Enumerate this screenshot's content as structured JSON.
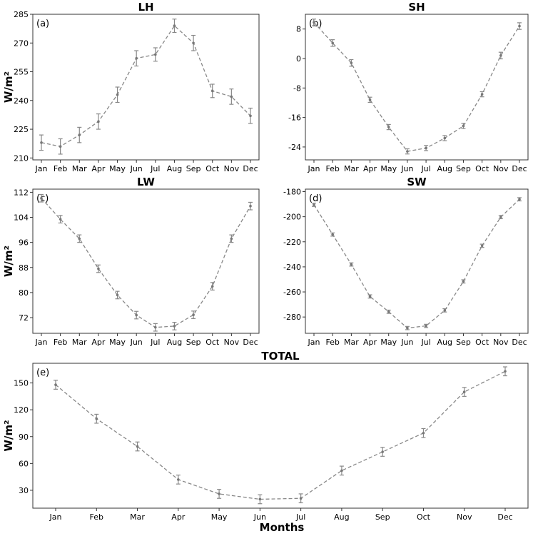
{
  "figure": {
    "xlabel": "Months"
  },
  "chart_data": [
    {
      "type": "line",
      "panel_label": "(a)",
      "title": "LH",
      "ylabel": "W/m²",
      "categories": [
        "Jan",
        "Feb",
        "Mar",
        "Apr",
        "May",
        "Jun",
        "Jul",
        "Aug",
        "Sep",
        "Oct",
        "Nov",
        "Dec"
      ],
      "values": [
        218,
        216,
        222,
        229,
        243,
        262,
        264,
        279,
        270,
        245,
        242,
        232
      ],
      "errors": [
        4,
        4,
        4,
        4,
        4,
        4,
        3.5,
        3.5,
        4,
        3.5,
        4,
        4
      ],
      "ylim": [
        209,
        285
      ],
      "yticks": [
        210,
        225,
        240,
        255,
        270,
        285
      ]
    },
    {
      "type": "line",
      "panel_label": "(b)",
      "title": "SH",
      "ylabel": "",
      "categories": [
        "Jan",
        "Feb",
        "Mar",
        "Apr",
        "May",
        "Jun",
        "Jul",
        "Aug",
        "Sep",
        "Oct",
        "Nov",
        "Dec"
      ],
      "values": [
        9.8,
        4.2,
        -1.2,
        -11.2,
        -18.6,
        -25.2,
        -24.3,
        -21.6,
        -18.3,
        -9.7,
        0.8,
        8.8
      ],
      "errors": [
        0.9,
        0.9,
        0.9,
        0.7,
        0.7,
        0.7,
        0.7,
        0.7,
        0.7,
        0.7,
        0.9,
        0.9
      ],
      "ylim": [
        -27.5,
        12
      ],
      "yticks": [
        -24,
        -16,
        -8,
        0,
        8
      ]
    },
    {
      "type": "line",
      "panel_label": "(c)",
      "title": "LW",
      "ylabel": "W/m²",
      "categories": [
        "Jan",
        "Feb",
        "Mar",
        "Apr",
        "May",
        "Jun",
        "Jul",
        "Aug",
        "Sep",
        "Oct",
        "Nov",
        "Dec"
      ],
      "values": [
        110.1,
        103.4,
        97.2,
        87.6,
        79.2,
        72.8,
        68.9,
        69.3,
        72.9,
        82.0,
        97.2,
        107.6
      ],
      "errors": [
        1.2,
        1.2,
        1.2,
        1.2,
        1.2,
        1.2,
        1.2,
        1.2,
        1.2,
        1.2,
        1.2,
        1.2
      ],
      "ylim": [
        67,
        113
      ],
      "yticks": [
        72,
        80,
        88,
        96,
        104,
        112
      ]
    },
    {
      "type": "line",
      "panel_label": "(d)",
      "title": "SW",
      "ylabel": "",
      "categories": [
        "Jan",
        "Feb",
        "Mar",
        "Apr",
        "May",
        "Jun",
        "Jul",
        "Aug",
        "Sep",
        "Oct",
        "Nov",
        "Dec"
      ],
      "values": [
        -190.5,
        -214.2,
        -238.1,
        -263.6,
        -275.8,
        -288.8,
        -287.1,
        -274.7,
        -251.6,
        -223.2,
        -200.3,
        -186.1
      ],
      "errors": [
        1.3,
        1.3,
        1.3,
        1.3,
        1.3,
        1.3,
        1.3,
        1.3,
        1.3,
        1.3,
        1.3,
        1.3
      ],
      "ylim": [
        -293,
        -178
      ],
      "yticks": [
        -280,
        -260,
        -240,
        -220,
        -200,
        -180
      ]
    },
    {
      "type": "line",
      "panel_label": "(e)",
      "title": "TOTAL",
      "ylabel": "W/m²",
      "categories": [
        "Jan",
        "Feb",
        "Mar",
        "Apr",
        "May",
        "Jun",
        "Jul",
        "Aug",
        "Sep",
        "Oct",
        "Nov",
        "Dec"
      ],
      "values": [
        148,
        110,
        79,
        42,
        26,
        20,
        21,
        52,
        73,
        94,
        140,
        163
      ],
      "errors": [
        5,
        5,
        5,
        5,
        5,
        5,
        5,
        5,
        5,
        5,
        5,
        5
      ],
      "ylim": [
        10,
        172
      ],
      "yticks": [
        30,
        60,
        90,
        120,
        150
      ]
    }
  ]
}
